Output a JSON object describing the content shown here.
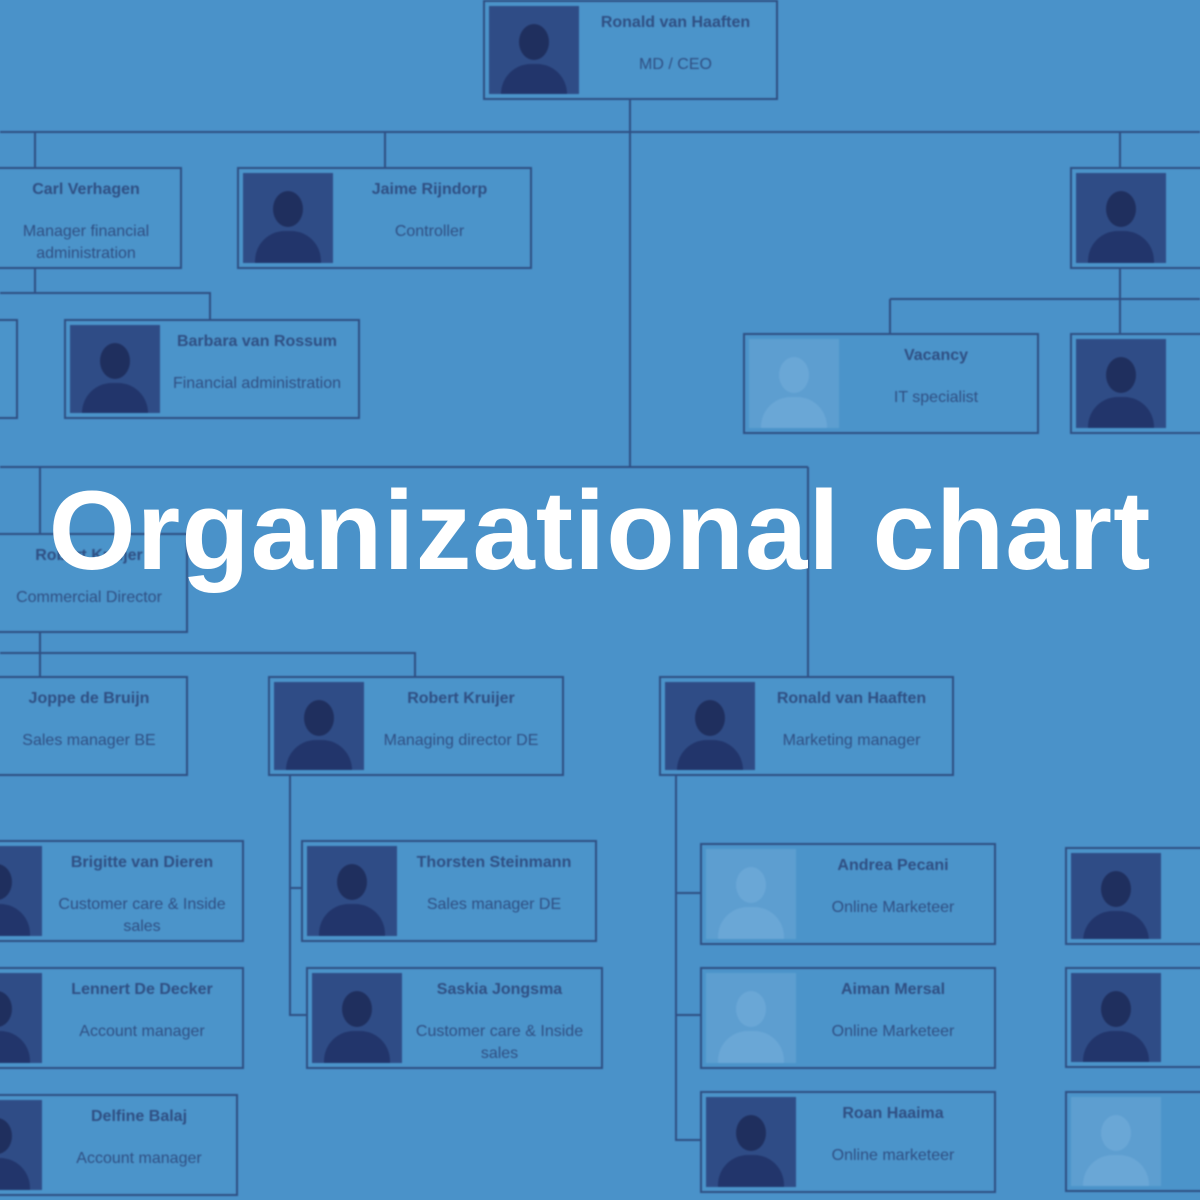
{
  "title": "Organizational chart",
  "nodes": [
    {
      "name": "Ronald van Haaften",
      "role": "MD / CEO"
    },
    {
      "name": "Carl Verhagen",
      "role": "Manager financial administration"
    },
    {
      "name": "Jaime Rijndorp",
      "role": "Controller"
    },
    {
      "name": "Barbara van Rossum",
      "role": "Financial administration"
    },
    {
      "name": "Vacancy",
      "role": "IT specialist"
    },
    {
      "name": "Robert Kruijer",
      "role": "Commercial Director"
    },
    {
      "name": "Joppe de Bruijn",
      "role": "Sales manager BE"
    },
    {
      "name": "Robert Kruijer",
      "role": "Managing director DE"
    },
    {
      "name": "Ronald van Haaften",
      "role": "Marketing manager"
    },
    {
      "name": "Brigitte van Dieren",
      "role": "Customer care & Inside sales"
    },
    {
      "name": "Thorsten Steinmann",
      "role": "Sales manager DE"
    },
    {
      "name": "Andrea Pecani",
      "role": "Online Marketeer"
    },
    {
      "name": "Lennert De Decker",
      "role": "Account manager"
    },
    {
      "name": "Saskia Jongsma",
      "role": "Customer care & Inside sales"
    },
    {
      "name": "Aiman Mersal",
      "role": "Online Marketeer"
    },
    {
      "name": "Delfine Balaj",
      "role": "Account manager"
    },
    {
      "name": "Roan Haaima",
      "role": "Online marketeer"
    }
  ]
}
